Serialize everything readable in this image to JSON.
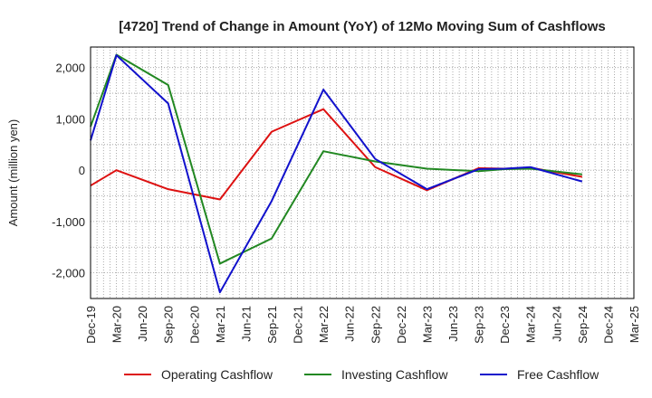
{
  "chart_data": {
    "type": "line",
    "title": "[4720]  Trend of Change in Amount (YoY) of 12Mo Moving Sum of Cashflows",
    "xlabel": "",
    "ylabel": "Amount (million yen)",
    "ylim": [
      -2500,
      2400
    ],
    "yticks": [
      2000,
      1000,
      0,
      -1000,
      -2000
    ],
    "ytick_labels": [
      "2,000",
      "1,000",
      "0",
      "-1,000",
      "-2,000"
    ],
    "grid": true,
    "legend_position": "bottom",
    "x_tick_labels": [
      "Dec-19",
      "Mar-20",
      "Jun-20",
      "Sep-20",
      "Dec-20",
      "Mar-21",
      "Jun-21",
      "Sep-21",
      "Dec-21",
      "Mar-22",
      "Jun-22",
      "Sep-22",
      "Dec-22",
      "Mar-23",
      "Jun-23",
      "Sep-23",
      "Dec-23",
      "Mar-24",
      "Jun-24",
      "Sep-24",
      "Dec-24",
      "Mar-25"
    ],
    "series": [
      {
        "name": "Operating Cashflow",
        "color": "#dd1111",
        "points": [
          [
            0,
            -300
          ],
          [
            1,
            0
          ],
          [
            3,
            -370
          ],
          [
            5,
            -570
          ],
          [
            7,
            750
          ],
          [
            9,
            1190
          ],
          [
            11,
            60
          ],
          [
            13,
            -390
          ],
          [
            15,
            40
          ],
          [
            16,
            30
          ],
          [
            17,
            50
          ],
          [
            19,
            -130
          ]
        ]
      },
      {
        "name": "Investing Cashflow",
        "color": "#228822",
        "points": [
          [
            0,
            850
          ],
          [
            1,
            2250
          ],
          [
            3,
            1660
          ],
          [
            5,
            -1820
          ],
          [
            7,
            -1330
          ],
          [
            9,
            370
          ],
          [
            11,
            170
          ],
          [
            13,
            30
          ],
          [
            15,
            -20
          ],
          [
            16,
            20
          ],
          [
            17,
            30
          ],
          [
            19,
            -80
          ]
        ]
      },
      {
        "name": "Free Cashflow",
        "color": "#1111cc",
        "points": [
          [
            0,
            580
          ],
          [
            1,
            2240
          ],
          [
            3,
            1300
          ],
          [
            5,
            -2380
          ],
          [
            7,
            -600
          ],
          [
            9,
            1570
          ],
          [
            11,
            220
          ],
          [
            13,
            -370
          ],
          [
            15,
            20
          ],
          [
            16,
            30
          ],
          [
            17,
            60
          ],
          [
            19,
            -220
          ]
        ]
      }
    ]
  }
}
